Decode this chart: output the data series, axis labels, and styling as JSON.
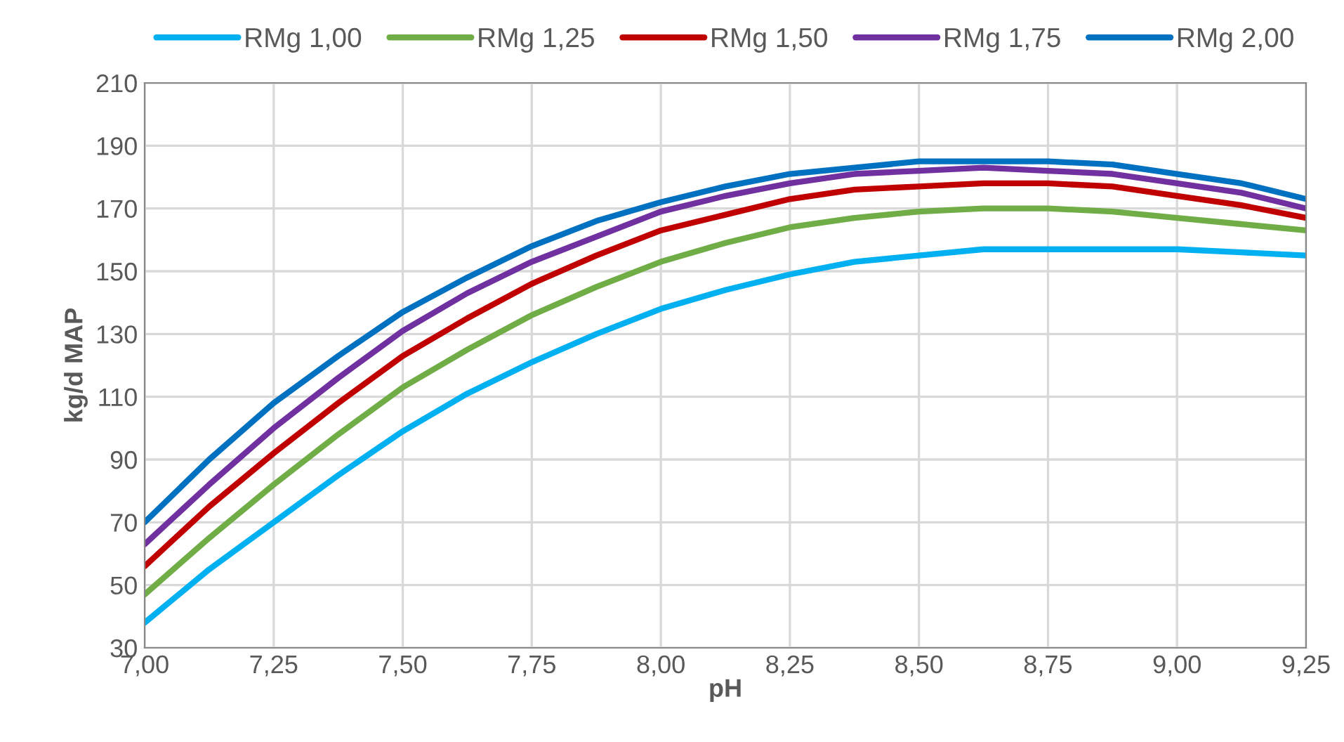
{
  "chart_data": {
    "type": "line",
    "xlabel": "pH",
    "ylabel": "kg/d MAP",
    "x": [
      7.0,
      7.125,
      7.25,
      7.375,
      7.5,
      7.625,
      7.75,
      7.875,
      8.0,
      8.125,
      8.25,
      8.375,
      8.5,
      8.625,
      8.75,
      8.875,
      9.0,
      9.125,
      9.25
    ],
    "series": [
      {
        "name": "RMg 1,00",
        "color": "#00b0f0",
        "values": [
          38,
          55,
          70,
          85,
          99,
          111,
          121,
          130,
          138,
          144,
          149,
          153,
          155,
          157,
          157,
          157,
          157,
          156,
          155
        ]
      },
      {
        "name": "RMg 1,25",
        "color": "#70ad47",
        "values": [
          47,
          65,
          82,
          98,
          113,
          125,
          136,
          145,
          153,
          159,
          164,
          167,
          169,
          170,
          170,
          169,
          167,
          165,
          163
        ]
      },
      {
        "name": "RMg 1,50",
        "color": "#c00000",
        "values": [
          56,
          75,
          92,
          108,
          123,
          135,
          146,
          155,
          163,
          168,
          173,
          176,
          177,
          178,
          178,
          177,
          174,
          171,
          167
        ]
      },
      {
        "name": "RMg 1,75",
        "color": "#7030a0",
        "values": [
          63,
          82,
          100,
          116,
          131,
          143,
          153,
          161,
          169,
          174,
          178,
          181,
          182,
          183,
          182,
          181,
          178,
          175,
          170
        ]
      },
      {
        "name": "RMg 2,00",
        "color": "#0070c0",
        "values": [
          70,
          90,
          108,
          123,
          137,
          148,
          158,
          166,
          172,
          177,
          181,
          183,
          185,
          185,
          185,
          184,
          181,
          178,
          173
        ]
      }
    ],
    "xlim": [
      7.0,
      9.25
    ],
    "ylim": [
      30,
      210
    ],
    "xticks": [
      {
        "value": 7.0,
        "label": "7,00"
      },
      {
        "value": 7.25,
        "label": "7,25"
      },
      {
        "value": 7.5,
        "label": "7,50"
      },
      {
        "value": 7.75,
        "label": "7,75"
      },
      {
        "value": 8.0,
        "label": "8,00"
      },
      {
        "value": 8.25,
        "label": "8,25"
      },
      {
        "value": 8.5,
        "label": "8,50"
      },
      {
        "value": 8.75,
        "label": "8,75"
      },
      {
        "value": 9.0,
        "label": "9,00"
      },
      {
        "value": 9.25,
        "label": "9,25"
      }
    ],
    "yticks": [
      30,
      50,
      70,
      90,
      110,
      130,
      150,
      170,
      190,
      210
    ],
    "grid": true,
    "legend": "top",
    "marker": "none",
    "line_style": "solid"
  }
}
